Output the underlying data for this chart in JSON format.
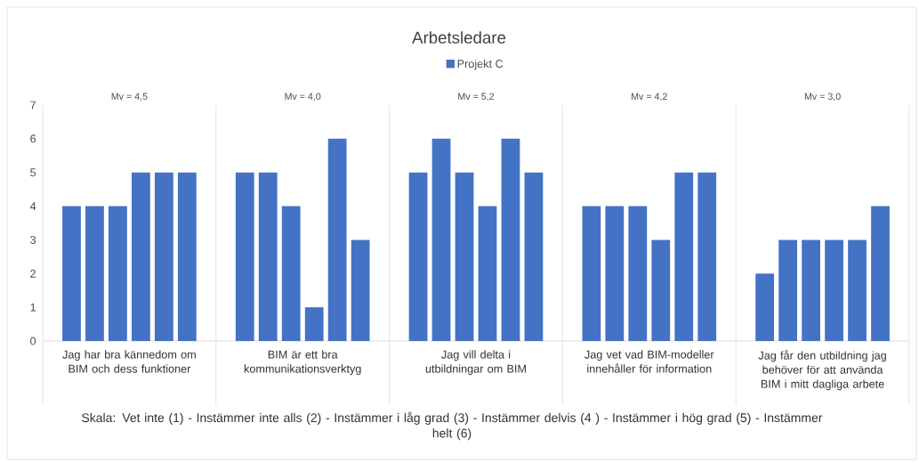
{
  "chart_data": {
    "type": "bar",
    "title": "Arbetsledare",
    "categories": [
      null,
      null,
      null,
      null,
      null,
      null,
      null,
      null,
      null,
      null,
      null,
      null,
      null,
      null,
      null,
      null,
      null,
      null,
      null,
      null,
      null,
      null,
      null,
      null,
      null,
      null,
      null,
      null,
      null,
      null
    ],
    "series": [
      {
        "name": "Projekt C",
        "color": "#4472c4",
        "values": [
          4,
          4,
          4,
          5,
          5,
          5,
          5,
          5,
          4,
          1,
          6,
          3,
          5,
          6,
          5,
          4,
          6,
          5,
          4,
          4,
          4,
          3,
          5,
          5,
          2,
          3,
          3,
          3,
          3,
          4
        ]
      }
    ],
    "ylim": [
      0,
      7
    ],
    "yticks": [
      0,
      1,
      2,
      3,
      4,
      5,
      6,
      7
    ],
    "legend": "top",
    "annotations": [
      "Jag har bra kännedom om BIM och dess funktioner",
      "BIM är ett bra kommunikationsverktyg",
      "Jag vill delta i utbildningar om BIM",
      "Jag vet vad BIM-modeller innehåller för information",
      "Jag får den utbildning jag behöver för att använda BIM i mitt dagliga arbete",
      "Mv = 4,5",
      "Mv = 4,0",
      "Mv = 5,2",
      "Mv = 4,2",
      "Mv = 3,0",
      "Skala: Vet inte (1) - Instämmer inte alls (2) - Instämmer i låg grad (3) - Instämmer delvis (4 ) - Instämmer i hög grad (5) - Instämmer helt (6)"
    ]
  }
}
